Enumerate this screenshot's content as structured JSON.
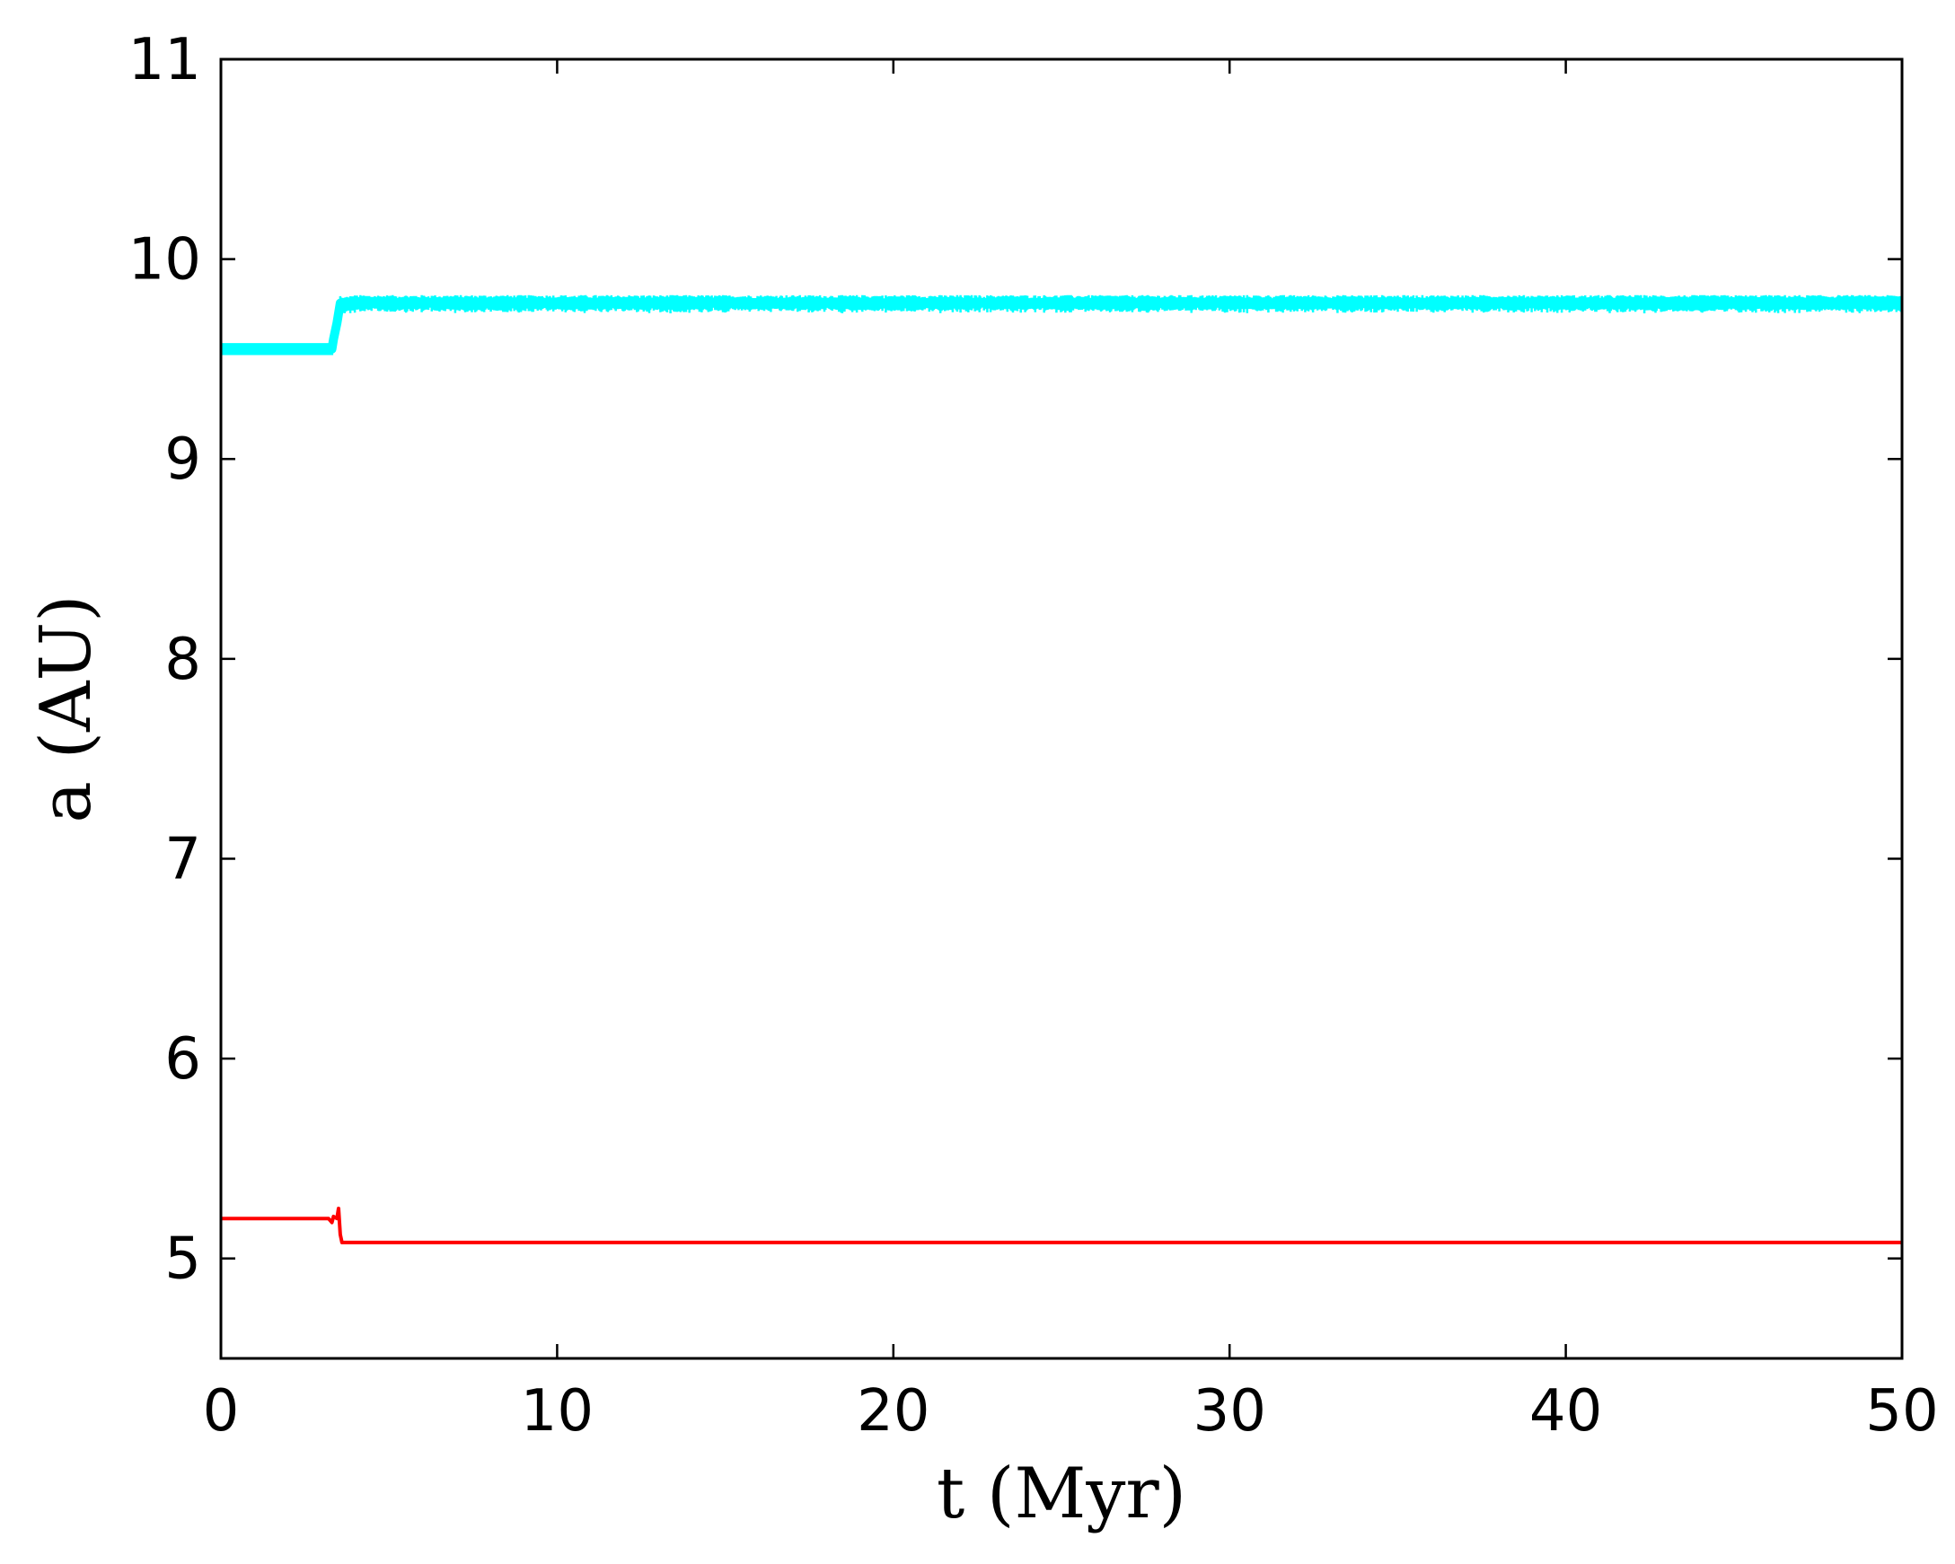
{
  "chart_data": {
    "type": "line",
    "title": "",
    "xlabel": "t (Myr)",
    "ylabel": "a (AU)",
    "xlim": [
      0,
      50
    ],
    "ylim": [
      4.5,
      11
    ],
    "xticks": [
      0,
      10,
      20,
      30,
      40,
      50
    ],
    "yticks": [
      5,
      6,
      7,
      8,
      9,
      10,
      11
    ],
    "grid": false,
    "legend": "none",
    "series": [
      {
        "color": "#00ffff",
        "band_halfwidth_au": 0.04,
        "x": [
          0,
          3.3,
          3.35,
          3.45,
          3.55,
          3.6,
          4.0,
          6.0,
          7.0,
          10.0,
          14.0,
          15.0,
          17.0,
          19.0,
          20.0,
          21.0,
          22.0,
          25.0,
          30.0,
          33.0,
          35.0,
          36.0,
          40.0,
          45.0,
          47.0,
          48.0,
          50.0
        ],
        "y": [
          9.55,
          9.55,
          9.6,
          9.68,
          9.78,
          9.77,
          9.78,
          9.78,
          9.78,
          9.78,
          9.78,
          9.78,
          9.78,
          9.78,
          9.78,
          9.78,
          9.78,
          9.78,
          9.78,
          9.78,
          9.78,
          9.78,
          9.78,
          9.78,
          9.78,
          9.78,
          9.78
        ]
      },
      {
        "color": "#ff0000",
        "x": [
          0,
          3.2,
          3.3,
          3.35,
          3.45,
          3.5,
          3.55,
          3.6,
          10.0,
          20.0,
          30.0,
          40.0,
          50.0
        ],
        "y": [
          5.2,
          5.2,
          5.18,
          5.21,
          5.2,
          5.25,
          5.12,
          5.08,
          5.08,
          5.08,
          5.08,
          5.08,
          5.08
        ]
      }
    ]
  }
}
